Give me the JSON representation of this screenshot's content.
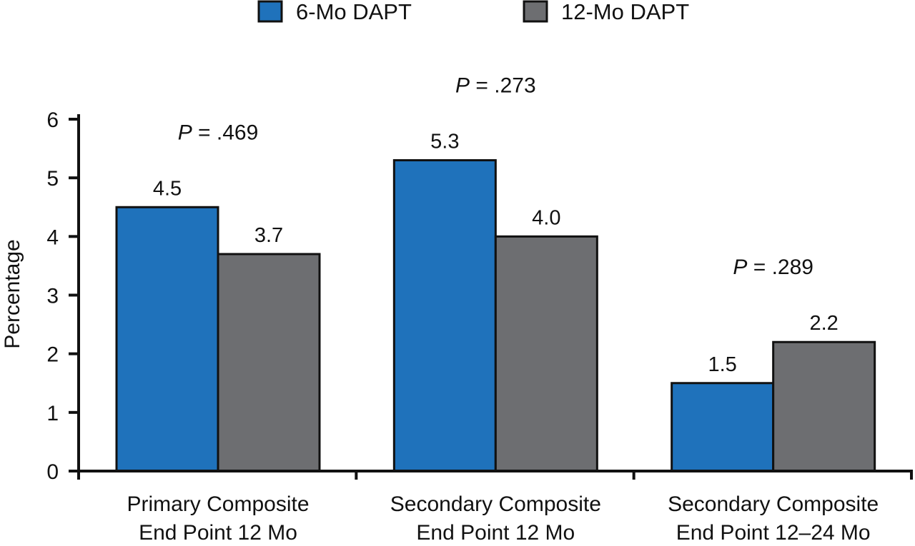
{
  "chart_data": {
    "type": "bar",
    "ylabel": "Percentage",
    "ylim": [
      0,
      6
    ],
    "yticks": [
      0,
      1,
      2,
      3,
      4,
      5,
      6
    ],
    "grid": false,
    "legend_position": "top",
    "categories": [
      [
        "Primary Composite",
        "End Point 12 Mo"
      ],
      [
        "Secondary Composite",
        "End Point 12 Mo"
      ],
      [
        "Secondary Composite",
        "End Point 12–24 Mo"
      ]
    ],
    "series": [
      {
        "name": "6-Mo DAPT",
        "color": "#1f72bb",
        "values": [
          4.5,
          5.3,
          1.5
        ],
        "labels": [
          "4.5",
          "5.3",
          "1.5"
        ]
      },
      {
        "name": "12-Mo DAPT",
        "color": "#6d6e71",
        "values": [
          3.7,
          4.0,
          2.2
        ],
        "labels": [
          "3.7",
          "4.0",
          "2.2"
        ]
      }
    ],
    "annotations": [
      {
        "prefix": "P",
        "text": " = .469"
      },
      {
        "prefix": "P",
        "text": " = .273"
      },
      {
        "prefix": "P",
        "text": " = .289"
      }
    ]
  }
}
